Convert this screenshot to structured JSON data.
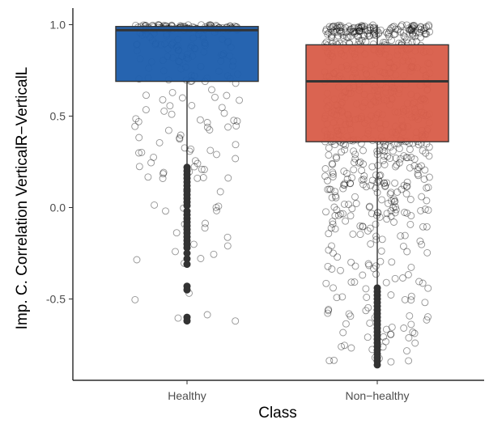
{
  "chart_data": {
    "type": "box",
    "title": "",
    "xlabel": "Class",
    "ylabel": "Imp. C. Correlation VerticalR−VerticalL",
    "categories": [
      "Healthy",
      "Non−healthy"
    ],
    "ylim": [
      -0.88,
      1.03
    ],
    "yticks": [
      -0.5,
      0.0,
      0.5,
      1.0
    ],
    "ytick_labels": [
      "-0.5",
      "0.0",
      "0.5",
      "1.0"
    ],
    "grid": false,
    "legend": "none",
    "boxes": [
      {
        "name": "Healthy",
        "fill": "#1f5fad",
        "q1": 0.69,
        "median": 0.97,
        "q3": 0.99,
        "whisker_low": 0.23,
        "whisker_high": 1.0,
        "outliers": [
          0.22,
          0.2,
          0.18,
          0.16,
          0.14,
          0.12,
          0.1,
          0.09,
          0.07,
          0.05,
          0.03,
          0.01,
          -0.02,
          -0.04,
          -0.06,
          -0.08,
          -0.1,
          -0.12,
          -0.14,
          -0.16,
          -0.18,
          -0.2,
          -0.22,
          -0.25,
          -0.28,
          -0.31,
          -0.43,
          -0.45,
          -0.6,
          -0.62
        ]
      },
      {
        "name": "Non−healthy",
        "fill": "#d95f4b",
        "q1": 0.36,
        "median": 0.69,
        "q3": 0.89,
        "whisker_low": -0.43,
        "whisker_high": 1.0,
        "outliers": [
          -0.44,
          -0.46,
          -0.48,
          -0.5,
          -0.52,
          -0.54,
          -0.56,
          -0.58,
          -0.6,
          -0.62,
          -0.64,
          -0.66,
          -0.68,
          -0.7,
          -0.72,
          -0.74,
          -0.76,
          -0.78,
          -0.8,
          -0.82,
          -0.84,
          -0.86
        ]
      }
    ],
    "jitter_points": [
      {
        "group": "Healthy",
        "n": 260,
        "min": -0.63,
        "max": 1.0
      },
      {
        "group": "Non−healthy",
        "n": 720,
        "min": -0.85,
        "max": 1.0
      }
    ]
  }
}
